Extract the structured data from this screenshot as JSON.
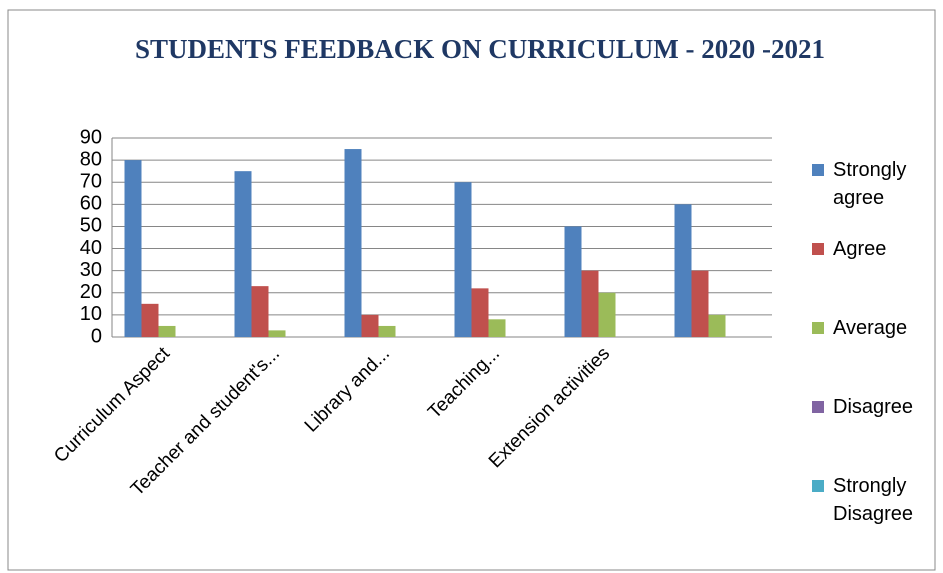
{
  "chart_data": {
    "type": "bar",
    "title": "STUDENTS FEEDBACK ON CURRICULUM - 2020 -2021",
    "categories": [
      "Curriculum Aspect",
      "Teacher and student's...",
      "Library and...",
      "Teaching...",
      "Extension activities",
      null
    ],
    "series": [
      {
        "name": "Strongly agree",
        "color": "#4f81bd",
        "values": [
          80,
          75,
          85,
          70,
          50,
          60
        ]
      },
      {
        "name": "Agree",
        "color": "#c0504d",
        "values": [
          15,
          23,
          10,
          22,
          30,
          30
        ]
      },
      {
        "name": "Average",
        "color": "#9bbb59",
        "values": [
          5,
          3,
          5,
          8,
          20,
          10
        ]
      },
      {
        "name": "Disagree",
        "color": "#8064a2",
        "values": [
          0,
          0,
          0,
          0,
          0,
          0
        ]
      },
      {
        "name": "Strongly Disagree",
        "color": "#4bacc6",
        "values": [
          0,
          0,
          0,
          0,
          0,
          0
        ]
      }
    ],
    "ylim": [
      0,
      90
    ],
    "yticks": [
      0,
      10,
      20,
      30,
      40,
      50,
      60,
      70,
      80,
      90
    ],
    "grid": true,
    "legend": "right"
  }
}
